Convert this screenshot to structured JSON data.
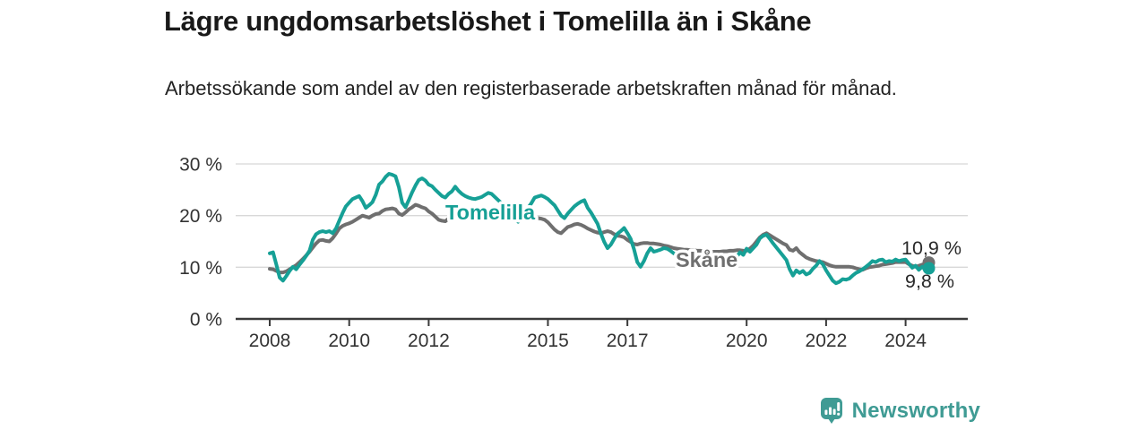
{
  "header": {
    "title": "Lägre ungdomsarbetslöshet i Tomelilla än i Skåne",
    "subtitle": "Arbetssökande som andel av den registerbaserade arbetskraften månad för månad."
  },
  "chart_data": {
    "type": "line",
    "title": "Lägre ungdomsarbetslöshet i Tomelilla än i Skåne",
    "subtitle": "Arbetssökande som andel av den registerbaserade arbetskraften månad för månad.",
    "unit": "%",
    "grid": true,
    "legend": "inline-labels",
    "ylim": [
      0,
      30
    ],
    "x_start_year": 2008,
    "x_step_months": 1,
    "x_ticks": [
      {
        "value": 2008,
        "label": "2008"
      },
      {
        "value": 2010,
        "label": "2010"
      },
      {
        "value": 2012,
        "label": "2012"
      },
      {
        "value": 2015,
        "label": "2015"
      },
      {
        "value": 2017,
        "label": "2017"
      },
      {
        "value": 2020,
        "label": "2020"
      },
      {
        "value": 2022,
        "label": "2022"
      },
      {
        "value": 2024,
        "label": "2024"
      }
    ],
    "y_ticks": [
      {
        "value": 0,
        "label": "0 %"
      },
      {
        "value": 10,
        "label": "10 %"
      },
      {
        "value": 20,
        "label": "20 %"
      },
      {
        "value": 30,
        "label": "30 %"
      }
    ],
    "series": [
      {
        "name": "Skåne",
        "color": "#6f6f6f",
        "end_label": "10,9 %",
        "end_value": 10.9,
        "values": [
          9.7,
          9.6,
          9.3,
          9.0,
          9.0,
          9.2,
          9.6,
          10.0,
          10.4,
          11.0,
          11.6,
          12.3,
          13.0,
          13.8,
          14.6,
          15.2,
          15.3,
          15.1,
          15.0,
          15.6,
          16.5,
          17.5,
          18.0,
          18.3,
          18.5,
          18.8,
          19.2,
          19.6,
          20.0,
          19.8,
          19.6,
          20.0,
          20.3,
          20.4,
          20.9,
          21.2,
          21.3,
          21.4,
          21.2,
          20.4,
          20.1,
          20.6,
          21.2,
          21.6,
          22.1,
          21.9,
          21.6,
          21.4,
          20.8,
          20.4,
          19.8,
          19.2,
          19.0,
          18.9,
          19.4,
          19.9,
          20.6,
          20.3,
          20.0,
          19.8,
          19.5,
          19.3,
          19.2,
          19.5,
          19.8,
          20.1,
          20.4,
          20.6,
          20.8,
          20.7,
          20.5,
          20.1,
          19.8,
          19.2,
          19.4,
          19.5,
          19.7,
          19.8,
          19.8,
          19.7,
          19.6,
          19.5,
          19.4,
          19.2,
          18.7,
          18.0,
          17.3,
          16.8,
          16.6,
          17.2,
          17.8,
          18.0,
          18.3,
          18.4,
          18.2,
          17.9,
          17.5,
          17.2,
          16.9,
          16.7,
          16.6,
          16.8,
          17.0,
          16.8,
          16.4,
          16.1,
          16.0,
          15.8,
          15.3,
          14.9,
          14.5,
          14.4,
          14.6,
          14.7,
          14.7,
          14.6,
          14.6,
          14.5,
          14.4,
          14.2,
          14.1,
          13.9,
          13.7,
          13.6,
          13.5,
          13.4,
          13.4,
          13.3,
          13.3,
          13.2,
          13.2,
          13.1,
          13.1,
          13.0,
          13.0,
          13.0,
          13.0,
          13.1,
          13.1,
          13.2,
          13.2,
          13.3,
          13.3,
          13.2,
          13.2,
          13.6,
          14.2,
          15.0,
          15.8,
          16.3,
          16.6,
          16.2,
          15.8,
          15.4,
          15.0,
          14.6,
          14.3,
          13.4,
          13.2,
          13.7,
          12.9,
          12.4,
          11.9,
          11.6,
          11.4,
          11.2,
          11.1,
          11.0,
          10.7,
          10.4,
          10.2,
          10.1,
          10.1,
          10.1,
          10.1,
          10.1,
          10.0,
          9.8,
          9.6,
          9.5,
          9.8,
          10.0,
          10.1,
          10.2,
          10.3,
          10.5,
          10.6,
          10.7,
          10.8,
          11.0,
          11.0,
          11.0,
          11.0,
          10.6,
          10.3,
          10.1,
          10.3,
          10.5,
          10.7,
          10.9
        ]
      },
      {
        "name": "Tomelilla",
        "color": "#16a096",
        "end_label": "9,8 %",
        "end_value": 9.8,
        "values": [
          12.7,
          12.9,
          10.5,
          8.0,
          7.4,
          8.3,
          9.3,
          10.1,
          9.6,
          10.5,
          11.3,
          12.2,
          13.2,
          15.3,
          16.4,
          16.8,
          17.0,
          16.8,
          17.0,
          16.6,
          17.5,
          19.0,
          20.5,
          21.8,
          22.5,
          23.2,
          23.5,
          23.8,
          22.8,
          21.5,
          22.0,
          22.6,
          24.0,
          26.0,
          26.6,
          27.5,
          28.1,
          27.9,
          27.6,
          25.5,
          22.5,
          21.6,
          23.0,
          24.5,
          25.8,
          26.9,
          27.2,
          26.8,
          26.0,
          25.7,
          25.0,
          24.4,
          23.8,
          23.5,
          24.2,
          24.7,
          25.6,
          24.8,
          24.2,
          23.8,
          23.5,
          23.3,
          23.2,
          23.4,
          23.6,
          24.0,
          24.4,
          24.2,
          23.6,
          23.0,
          22.4,
          21.6,
          20.8,
          20.0,
          19.4,
          18.8,
          19.6,
          20.5,
          21.5,
          22.4,
          23.5,
          23.7,
          23.9,
          23.6,
          23.2,
          22.6,
          22.0,
          21.0,
          20.0,
          19.5,
          20.4,
          21.1,
          21.8,
          22.3,
          22.7,
          23.0,
          21.5,
          20.6,
          19.5,
          18.4,
          16.5,
          14.9,
          13.7,
          14.4,
          15.5,
          16.5,
          17.0,
          17.6,
          16.6,
          15.5,
          13.5,
          11.0,
          10.1,
          11.2,
          12.7,
          13.7,
          13.0,
          13.2,
          13.4,
          13.7,
          13.6,
          13.2,
          12.7,
          12.4,
          12.2,
          12.0,
          11.8,
          11.6,
          11.4,
          11.2,
          11.0,
          10.8,
          10.6,
          10.2,
          9.9,
          10.3,
          10.7,
          11.0,
          11.3,
          11.5,
          11.8,
          12.0,
          12.9,
          12.4,
          13.6,
          13.0,
          13.7,
          14.4,
          15.6,
          16.1,
          16.3,
          15.5,
          14.6,
          13.8,
          13.0,
          12.2,
          11.4,
          9.6,
          8.4,
          9.4,
          8.9,
          9.3,
          8.6,
          8.9,
          9.7,
          10.3,
          11.2,
          10.6,
          9.4,
          8.4,
          7.4,
          6.9,
          7.2,
          7.7,
          7.6,
          7.8,
          8.4,
          8.9,
          9.2,
          9.6,
          10.1,
          10.6,
          11.2,
          11.0,
          11.4,
          11.5,
          11.0,
          11.2,
          11.1,
          11.5,
          11.2,
          11.4,
          11.5,
          10.7,
          9.9,
          10.3,
          9.5,
          10.1,
          9.5,
          9.8
        ]
      }
    ]
  },
  "footer": {
    "brand": "Newsworthy"
  },
  "colors": {
    "tomelilla": "#16a096",
    "skane": "#6f6f6f",
    "gridline": "#d8d8d8",
    "axis": "#3a3a3a",
    "axis_text": "#333333",
    "value_label": "#2a2a2a",
    "logo": "#3f9b94"
  }
}
